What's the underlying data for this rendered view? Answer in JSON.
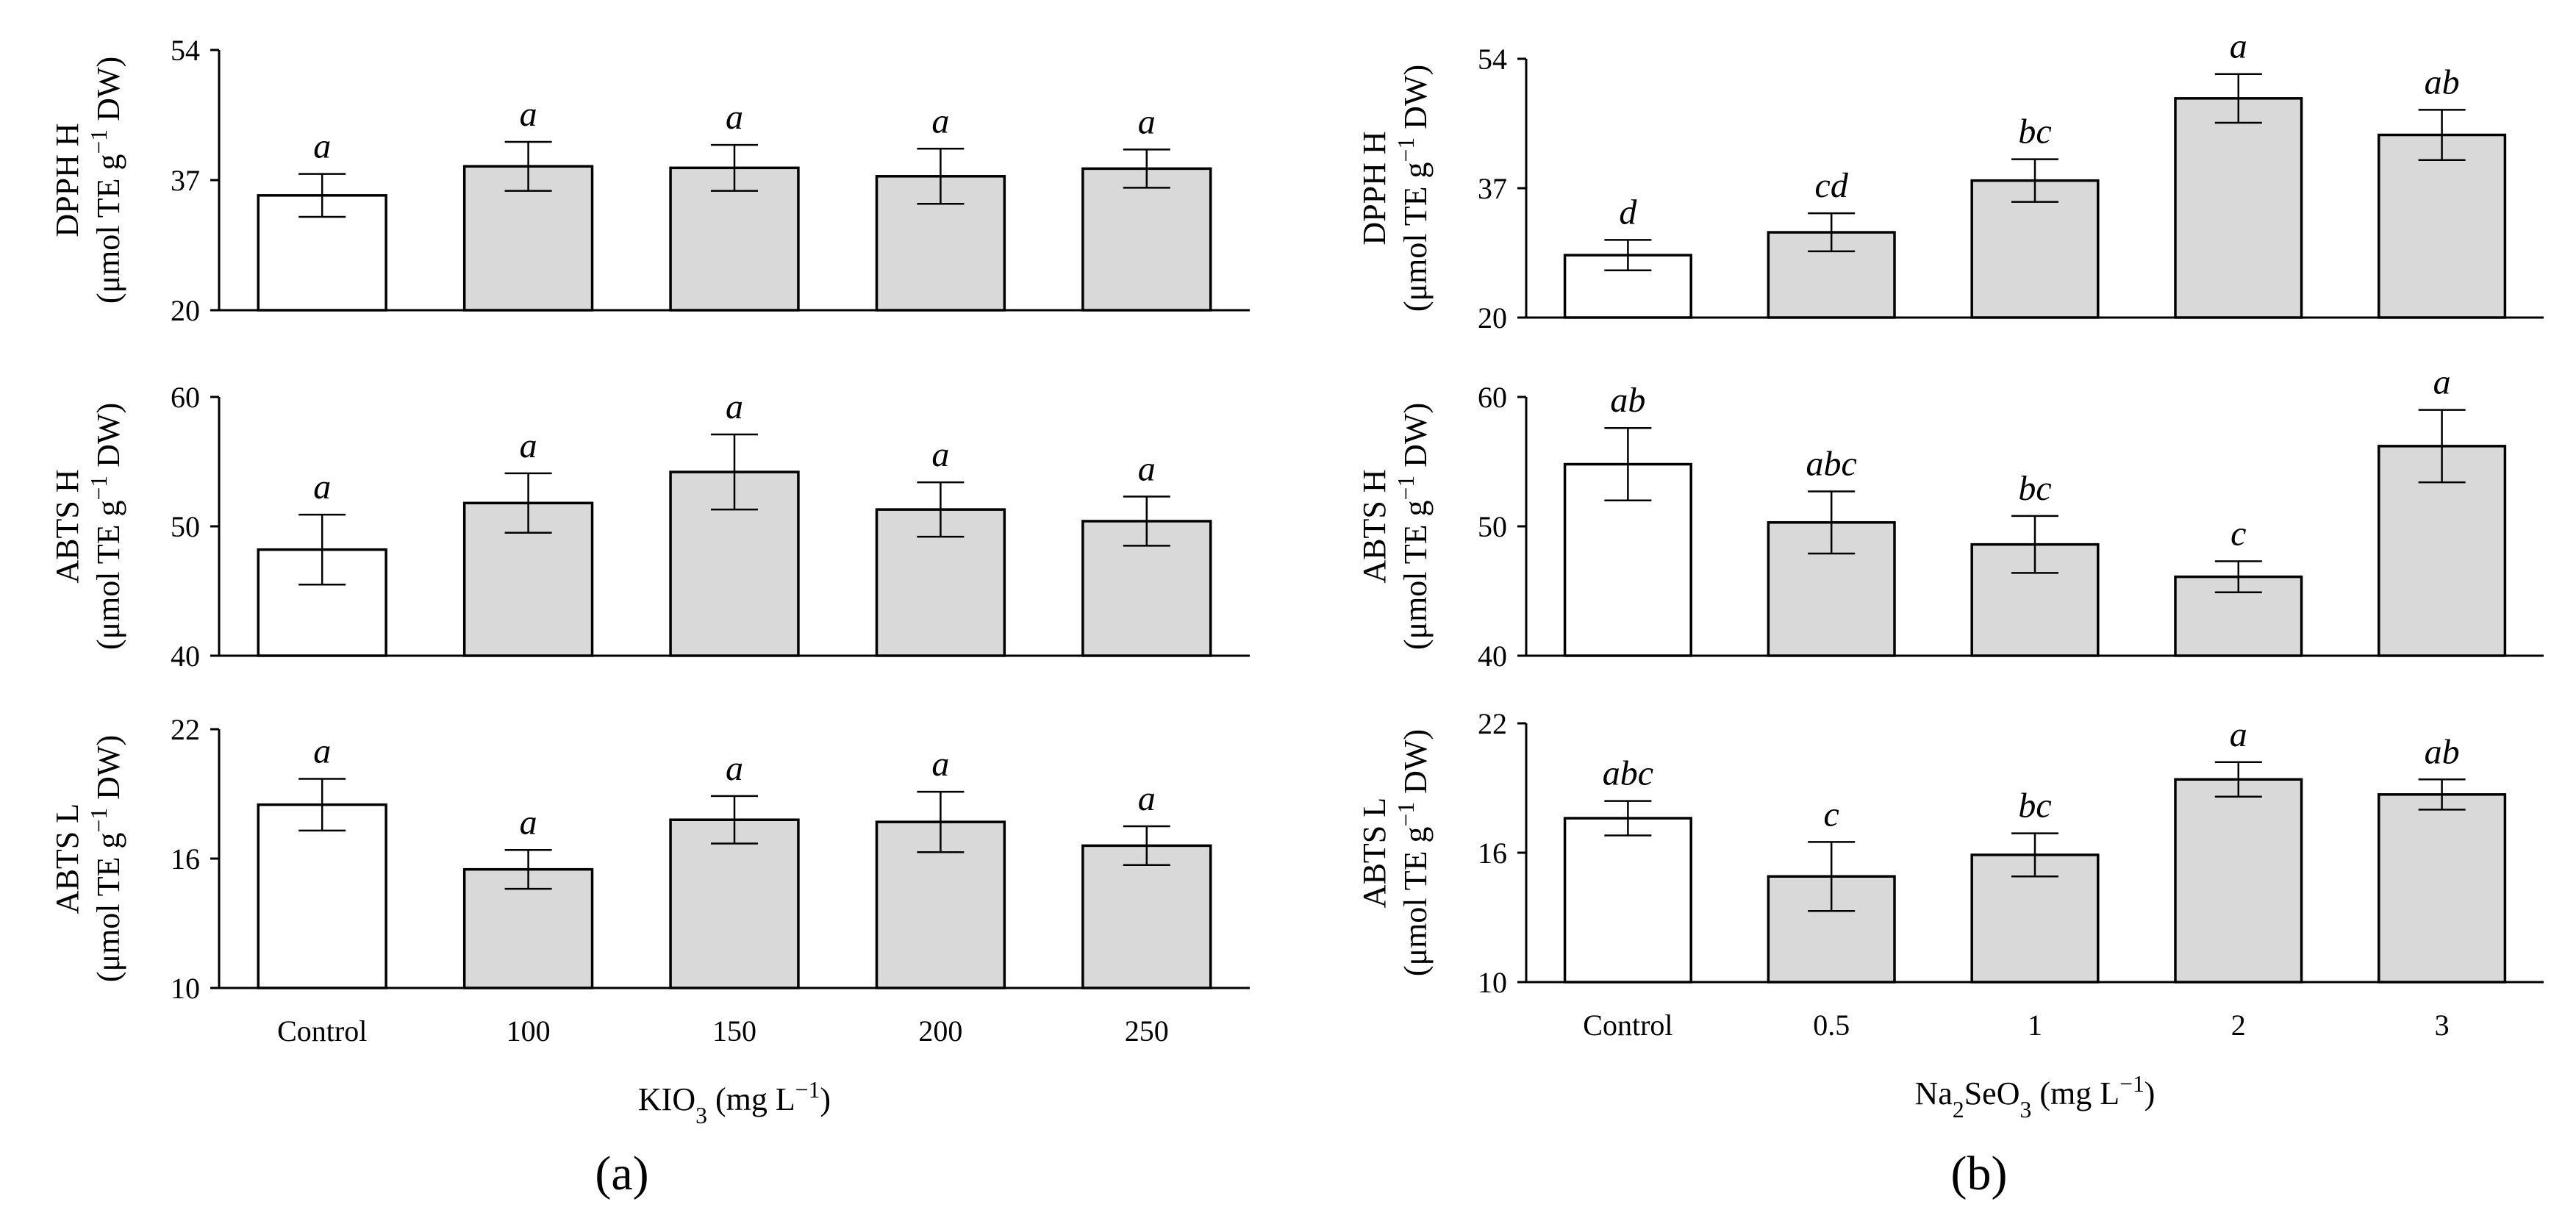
{
  "figure": {
    "panel_labels": [
      "(a)",
      "(b)"
    ]
  },
  "chart_data": [
    {
      "type": "bar",
      "panel": "a",
      "row": 0,
      "title": "",
      "categories": [
        "Control",
        "100",
        "150",
        "200",
        "250"
      ],
      "values": [
        35,
        38.8,
        38.6,
        37.5,
        38.5
      ],
      "errors": [
        2.8,
        3.2,
        3.0,
        3.6,
        2.5
      ],
      "letters": [
        "a",
        "a",
        "a",
        "a",
        "a"
      ],
      "bar_colors": [
        "#ffffff",
        "#d9d9d9",
        "#d9d9d9",
        "#d9d9d9",
        "#d9d9d9"
      ],
      "ylabel": "DPPH H",
      "ylabel_unit": "(μmol TE g⁻¹ DW)",
      "ylim": [
        20,
        54
      ],
      "yticks": [
        "20",
        "37",
        "54"
      ],
      "xlabel": ""
    },
    {
      "type": "bar",
      "panel": "a",
      "row": 1,
      "title": "",
      "categories": [
        "Control",
        "100",
        "150",
        "200",
        "250"
      ],
      "values": [
        48.2,
        51.8,
        54.2,
        51.3,
        50.4
      ],
      "errors": [
        2.7,
        2.3,
        2.9,
        2.1,
        1.9
      ],
      "letters": [
        "a",
        "a",
        "a",
        "a",
        "a"
      ],
      "bar_colors": [
        "#ffffff",
        "#d9d9d9",
        "#d9d9d9",
        "#d9d9d9",
        "#d9d9d9"
      ],
      "ylabel": "ABTS H",
      "ylabel_unit": "(μmol TE g⁻¹ DW)",
      "ylim": [
        40,
        60
      ],
      "yticks": [
        "40",
        "50",
        "60"
      ],
      "xlabel": ""
    },
    {
      "type": "bar",
      "panel": "a",
      "row": 2,
      "title": "",
      "categories": [
        "Control",
        "100",
        "150",
        "200",
        "250"
      ],
      "values": [
        18.5,
        15.5,
        17.8,
        17.7,
        16.6
      ],
      "errors": [
        1.2,
        0.9,
        1.1,
        1.4,
        0.9
      ],
      "letters": [
        "a",
        "a",
        "a",
        "a",
        "a"
      ],
      "bar_colors": [
        "#ffffff",
        "#d9d9d9",
        "#d9d9d9",
        "#d9d9d9",
        "#d9d9d9"
      ],
      "ylabel": "ABTS L",
      "ylabel_unit": "(μmol TE g⁻¹ DW)",
      "ylim": [
        10,
        22
      ],
      "yticks": [
        "10",
        "16",
        "22"
      ],
      "xlabel": "KIO₃ (mg L⁻¹)"
    },
    {
      "type": "bar",
      "panel": "b",
      "row": 0,
      "title": "",
      "categories": [
        "Control",
        "0.5",
        "1",
        "2",
        "3"
      ],
      "values": [
        28.2,
        31.2,
        38,
        48.8,
        44
      ],
      "errors": [
        2.0,
        2.5,
        2.8,
        3.2,
        3.3
      ],
      "letters": [
        "d",
        "cd",
        "bc",
        "a",
        "ab"
      ],
      "bar_colors": [
        "#ffffff",
        "#d9d9d9",
        "#d9d9d9",
        "#d9d9d9",
        "#d9d9d9"
      ],
      "ylabel": "DPPH H",
      "ylabel_unit": "(μmol TE g⁻¹ DW)",
      "ylim": [
        20,
        54
      ],
      "yticks": [
        "20",
        "37",
        "54"
      ],
      "xlabel": ""
    },
    {
      "type": "bar",
      "panel": "b",
      "row": 1,
      "title": "",
      "categories": [
        "Control",
        "0.5",
        "1",
        "2",
        "3"
      ],
      "values": [
        54.8,
        50.3,
        48.6,
        46.1,
        56.2
      ],
      "errors": [
        2.8,
        2.4,
        2.2,
        1.2,
        2.8
      ],
      "letters": [
        "ab",
        "abc",
        "bc",
        "c",
        "a"
      ],
      "bar_colors": [
        "#ffffff",
        "#d9d9d9",
        "#d9d9d9",
        "#d9d9d9",
        "#d9d9d9"
      ],
      "ylabel": "ABTS H",
      "ylabel_unit": "(μmol TE g⁻¹ DW)",
      "ylim": [
        40,
        60
      ],
      "yticks": [
        "40",
        "50",
        "60"
      ],
      "xlabel": ""
    },
    {
      "type": "bar",
      "panel": "b",
      "row": 2,
      "title": "",
      "categories": [
        "Control",
        "0.5",
        "1",
        "2",
        "3"
      ],
      "values": [
        17.6,
        14.9,
        15.9,
        19.4,
        18.7
      ],
      "errors": [
        0.8,
        1.6,
        1.0,
        0.8,
        0.7
      ],
      "letters": [
        "abc",
        "c",
        "bc",
        "a",
        "ab"
      ],
      "bar_colors": [
        "#ffffff",
        "#d9d9d9",
        "#d9d9d9",
        "#d9d9d9",
        "#d9d9d9"
      ],
      "ylabel": "ABTS L",
      "ylabel_unit": "(μmol TE g⁻¹ DW)",
      "ylim": [
        10,
        22
      ],
      "yticks": [
        "10",
        "16",
        "22"
      ],
      "xlabel": "Na₂SeO₃ (mg L⁻¹)"
    }
  ]
}
